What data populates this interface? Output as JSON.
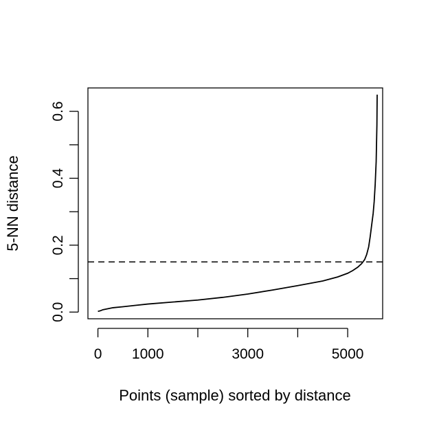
{
  "chart_data": {
    "type": "line",
    "title": "",
    "xlabel": "Points (sample) sorted by distance",
    "ylabel": "5-NN distance",
    "xlim": [
      -200,
      5700
    ],
    "ylim": [
      -0.02,
      0.67
    ],
    "x_ticks": [
      0,
      1000,
      2000,
      3000,
      4000,
      5000
    ],
    "x_tick_labels": [
      "0",
      "1000",
      "",
      "3000",
      "",
      "5000"
    ],
    "y_ticks": [
      0.0,
      0.1,
      0.2,
      0.3,
      0.4,
      0.5,
      0.6
    ],
    "y_tick_labels": [
      "0.0",
      "",
      "0.2",
      "",
      "0.4",
      "",
      "0.6"
    ],
    "grid": false,
    "threshold_line": {
      "y": 0.15,
      "style": "dashed"
    },
    "series": [
      {
        "x": [
          0,
          50,
          100,
          200,
          300,
          500,
          750,
          1000,
          1500,
          2000,
          2500,
          3000,
          3500,
          4000,
          4500,
          4800,
          5000,
          5100,
          5200,
          5280,
          5340,
          5380,
          5420,
          5450,
          5480,
          5510,
          5530,
          5550,
          5570,
          5585,
          5590
        ],
        "y": [
          0.002,
          0.004,
          0.007,
          0.01,
          0.013,
          0.016,
          0.02,
          0.024,
          0.03,
          0.036,
          0.044,
          0.054,
          0.066,
          0.079,
          0.093,
          0.105,
          0.116,
          0.124,
          0.134,
          0.145,
          0.157,
          0.172,
          0.195,
          0.225,
          0.26,
          0.295,
          0.33,
          0.38,
          0.45,
          0.56,
          0.65
        ]
      }
    ]
  }
}
